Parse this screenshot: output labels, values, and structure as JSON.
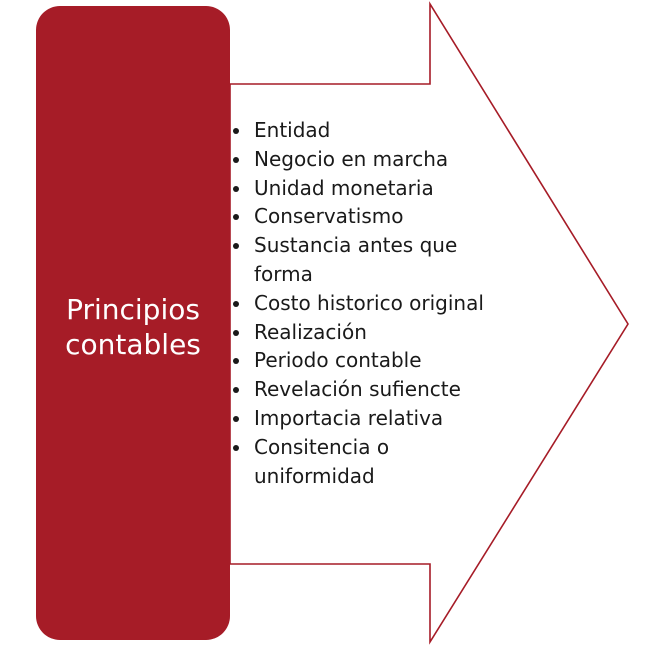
{
  "diagram": {
    "title": "Principios contables",
    "items": [
      "Entidad",
      "Negocio en marcha",
      "Unidad monetaria",
      "Conservatismo",
      "Sustancia antes que forma",
      "Costo historico original",
      "Realización",
      "Periodo contable",
      "Revelación sufiencte",
      "Importacia relativa",
      "Consitencia o uniformidad"
    ]
  },
  "colors": {
    "box_fill": "#a61c27",
    "arrow_outline": "#a61c27",
    "title_text": "#ffffff",
    "list_text": "#1a1a1a"
  },
  "icons": {
    "bullet": "bullet-dot-icon"
  }
}
